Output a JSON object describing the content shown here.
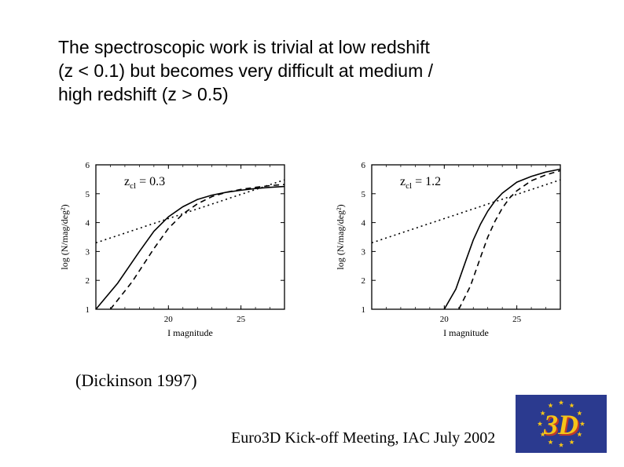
{
  "body_text": {
    "line1": "The spectroscopic work is trivial at low redshift",
    "line2": "(z < 0.1) but becomes very difficult at medium /",
    "line3": "high redshift (z > 0.5)"
  },
  "charts": [
    {
      "type": "line",
      "annotation": "z",
      "annotation_sub": "cl",
      "annotation_eq": " = 0.3",
      "xlabel": "I magnitude",
      "ylabel": "log (N/mag/deg²)",
      "xticks": [
        20,
        25
      ],
      "yticks": [
        1,
        2,
        3,
        4,
        5,
        6
      ],
      "xlim": [
        15,
        28
      ],
      "ylim": [
        1,
        6
      ],
      "series": [
        {
          "style": "solid",
          "points": [
            [
              15,
              1.0
            ],
            [
              16.5,
              1.9
            ],
            [
              18,
              3.0
            ],
            [
              19,
              3.7
            ],
            [
              20,
              4.2
            ],
            [
              21,
              4.55
            ],
            [
              22,
              4.8
            ],
            [
              23,
              4.95
            ],
            [
              24,
              5.05
            ],
            [
              25,
              5.12
            ],
            [
              26,
              5.18
            ],
            [
              27,
              5.22
            ],
            [
              28,
              5.25
            ]
          ]
        },
        {
          "style": "dashed",
          "points": [
            [
              16,
              1.0
            ],
            [
              17.5,
              1.95
            ],
            [
              19,
              3.1
            ],
            [
              20,
              3.8
            ],
            [
              21,
              4.3
            ],
            [
              22,
              4.65
            ],
            [
              23,
              4.9
            ],
            [
              24,
              5.05
            ],
            [
              25,
              5.15
            ],
            [
              26,
              5.22
            ],
            [
              27,
              5.28
            ],
            [
              28,
              5.32
            ]
          ]
        },
        {
          "style": "dotted",
          "points": [
            [
              15,
              3.3
            ],
            [
              28,
              5.48
            ]
          ]
        }
      ],
      "line_color": "#000000",
      "background_color": "#ffffff",
      "axis_color": "#000000",
      "font_family": "serif",
      "label_fontsize": 11,
      "tick_fontsize": 11
    },
    {
      "type": "line",
      "annotation": "z",
      "annotation_sub": "cl",
      "annotation_eq": " = 1.2",
      "xlabel": "I magnitude",
      "ylabel": "log (N/mag/deg²)",
      "xticks": [
        20,
        25
      ],
      "yticks": [
        1,
        2,
        3,
        4,
        5,
        6
      ],
      "xlim": [
        15,
        28
      ],
      "ylim": [
        1,
        6
      ],
      "series": [
        {
          "style": "solid",
          "points": [
            [
              20,
              1.0
            ],
            [
              20.8,
              1.7
            ],
            [
              21.5,
              2.7
            ],
            [
              22,
              3.4
            ],
            [
              22.5,
              3.95
            ],
            [
              23,
              4.4
            ],
            [
              23.5,
              4.75
            ],
            [
              24,
              5.02
            ],
            [
              25,
              5.4
            ],
            [
              26,
              5.6
            ],
            [
              27,
              5.75
            ],
            [
              28,
              5.85
            ]
          ]
        },
        {
          "style": "dashed",
          "points": [
            [
              21,
              1.0
            ],
            [
              21.8,
              1.8
            ],
            [
              22.5,
              2.8
            ],
            [
              23,
              3.5
            ],
            [
              23.5,
              4.05
            ],
            [
              24,
              4.5
            ],
            [
              24.5,
              4.85
            ],
            [
              25,
              5.1
            ],
            [
              26,
              5.45
            ],
            [
              27,
              5.65
            ],
            [
              28,
              5.8
            ]
          ]
        },
        {
          "style": "dotted",
          "points": [
            [
              15,
              3.3
            ],
            [
              28,
              5.48
            ]
          ]
        }
      ],
      "line_color": "#000000",
      "background_color": "#ffffff",
      "axis_color": "#000000",
      "font_family": "serif",
      "label_fontsize": 11,
      "tick_fontsize": 11
    }
  ],
  "citation": "(Dickinson 1997)",
  "footer": "Euro3D Kick-off Meeting, IAC July 2002",
  "logo": {
    "text_main": "3D",
    "bg_color": "#2b3a8f",
    "star_fill": "#f5c518",
    "text_fill": "#f5c518",
    "text_shadow": "#c0392b"
  }
}
